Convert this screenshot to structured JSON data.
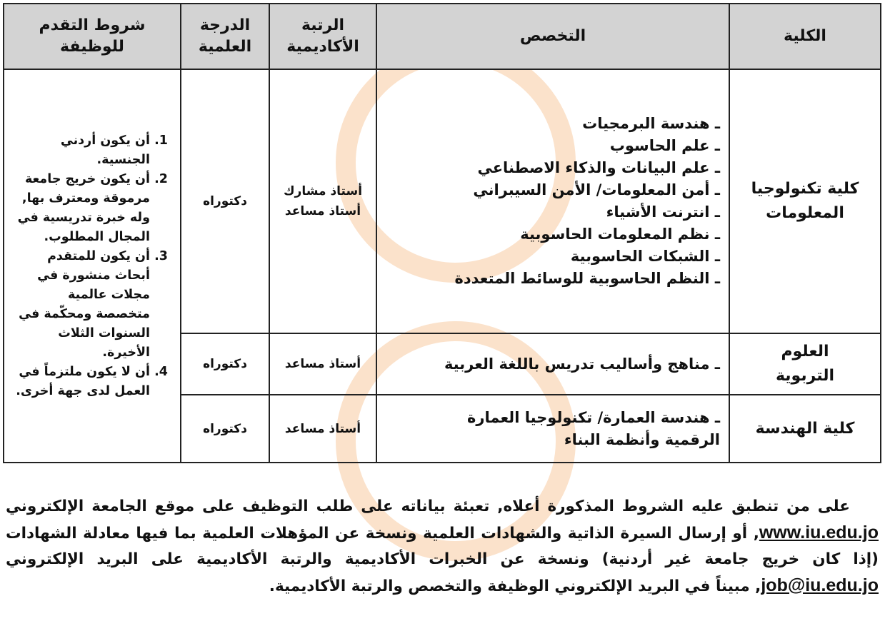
{
  "table": {
    "headers": {
      "faculty": "الكلية",
      "specialization": "التخصص",
      "rank": "الرتبة الأكاديمية",
      "degree": "الدرجة العلمية",
      "conditions": "شروط التقدم للوظيفة"
    },
    "rows": [
      {
        "faculty": "كلية تكنولوجيا المعلومات",
        "specializations": [
          "ـ هندسة البرمجيات",
          "ـ علم الحاسوب",
          "ـ علم البيانات والذكاء الاصطناعي",
          "ـ أمن المعلومات/ الأمن السيبراني",
          "ـ انترنت الأشياء",
          "ـ نظم المعلومات الحاسوبية",
          "ـ الشبكات الحاسوبية",
          "ـ النظم الحاسوبية للوسائط المتعددة"
        ],
        "ranks": [
          "أستاذ مشارك",
          "أستاذ مساعد"
        ],
        "degree": "دكتوراه"
      },
      {
        "faculty": "العلوم التربوية",
        "specializations": [
          "ـ مناهج وأساليب تدريس باللغة العربية"
        ],
        "ranks": [
          "أستاذ مساعد"
        ],
        "degree": "دكتوراه"
      },
      {
        "faculty": "كلية الهندسة",
        "specializations": [
          "ـ هندسة العمارة/ تكنولوجيا العمارة الرقمية وأنظمة البناء"
        ],
        "ranks": [
          "أستاذ مساعد"
        ],
        "degree": "دكتوراه"
      }
    ],
    "conditions": [
      "أن يكون أردني الجنسية.",
      "أن يكون خريج جامعة مرموقة ومعترف بها, وله خبرة تدريسية في المجال المطلوب.",
      "أن يكون للمتقدم أبحاث منشورة في مجلات عالمية متخصصة ومحكّمة في السنوات الثلاث الأخيرة.",
      "أن لا يكون ملتزماً في العمل لدى جهة أخرى."
    ]
  },
  "notice": {
    "part1": "على من تنطبق عليه الشروط المذكورة أعلاه, تعبئة بياناته على طلب التوظيف على موقع الجامعة الإلكتروني ",
    "website": "www.iu.edu.jo",
    "part2": ",  أو إرسال السيرة الذاتية والشهادات العلمية ونسخة عن المؤهلات العلمية بما فيها معادلة الشهادات (إذا كان خريج جامعة غير أردنية) ونسخة عن الخبرات الأكاديمية والرتبة الأكاديمية على البريد الإلكتروني ",
    "email": "job@iu.edu.jo",
    "part3": ", مبيناً في البريد الإلكتروني الوظيفة والتخصص والرتبة الأكاديمية."
  },
  "colors": {
    "header_bg": "#d3d3d3",
    "watermark": "#f09646"
  }
}
